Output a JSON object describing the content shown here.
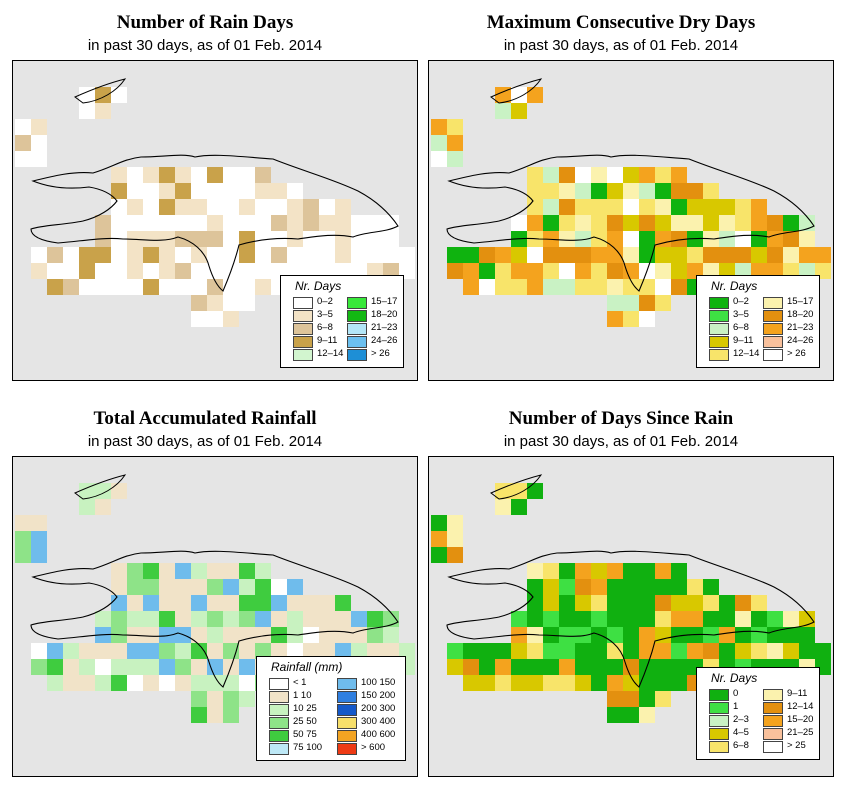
{
  "colors": {
    "map_background": "#e5e5e5",
    "coastline": "#000000"
  },
  "panels": [
    {
      "id": "rain-days",
      "title": "Number of Rain Days",
      "subtitle": "in past 30 days, as of  01 Feb. 2014",
      "legend": {
        "title": "Nr. Days",
        "columns": [
          [
            {
              "label": "0–2",
              "color": "#ffffff"
            },
            {
              "label": "3–5",
              "color": "#f3e3c6"
            },
            {
              "label": "6–8",
              "color": "#ddc49a"
            },
            {
              "label": "9–11",
              "color": "#c9a24a"
            },
            {
              "label": "12–14",
              "color": "#d2f5cf"
            }
          ],
          [
            {
              "label": "15–17",
              "color": "#38e83a"
            },
            {
              "label": "18–20",
              "color": "#13b813"
            },
            {
              "label": "21–23",
              "color": "#b3e6f7"
            },
            {
              "label": "24–26",
              "color": "#6cc0ef"
            },
            {
              "label": "> 26",
              "color": "#1e8fd6"
            }
          ]
        ]
      }
    },
    {
      "id": "dry-days",
      "title": "Maximum Consecutive Dry Days",
      "subtitle": "in past 30 days, as of  01 Feb. 2014",
      "legend": {
        "title": "Nr. Days",
        "columns": [
          [
            {
              "label": "0–2",
              "color": "#0fb30f"
            },
            {
              "label": "3–5",
              "color": "#3ee043"
            },
            {
              "label": "6–8",
              "color": "#c9f2c4"
            },
            {
              "label": "9–11",
              "color": "#d8c800"
            },
            {
              "label": "12–14",
              "color": "#f8e46a"
            }
          ],
          [
            {
              "label": "15–17",
              "color": "#fbf2ae"
            },
            {
              "label": "18–20",
              "color": "#e3900f"
            },
            {
              "label": "21–23",
              "color": "#f4a31e"
            },
            {
              "label": "24–26",
              "color": "#f9c19c"
            },
            {
              "label": "> 26",
              "color": "#ffffff"
            }
          ]
        ]
      }
    },
    {
      "id": "rainfall",
      "title": "Total Accumulated Rainfall",
      "subtitle": "in past 30 days, as of  01 Feb. 2014",
      "legend": {
        "title": "Rainfall (mm)",
        "columns": [
          [
            {
              "label": "< 1",
              "color": "#ffffff"
            },
            {
              "label": "1    10",
              "color": "#f1e3c8"
            },
            {
              "label": "10    25",
              "color": "#c8f2c0"
            },
            {
              "label": "25    50",
              "color": "#8ee388"
            },
            {
              "label": "50    75",
              "color": "#3fcc3f"
            },
            {
              "label": "75   100",
              "color": "#bde8f6"
            }
          ],
          [
            {
              "label": "100   150",
              "color": "#6fbcec"
            },
            {
              "label": "150   200",
              "color": "#2f7fe0"
            },
            {
              "label": "200   300",
              "color": "#1559c9"
            },
            {
              "label": "300   400",
              "color": "#f7df6a"
            },
            {
              "label": "400   600",
              "color": "#f3a422"
            },
            {
              "label": "> 600",
              "color": "#ee3a14"
            }
          ]
        ]
      }
    },
    {
      "id": "since-rain",
      "title": "Number of Days Since Rain",
      "subtitle": "in past 30 days, as of  01 Feb. 2014",
      "legend": {
        "title": "Nr. Days",
        "columns": [
          [
            {
              "label": "0",
              "color": "#10b010"
            },
            {
              "label": "1",
              "color": "#3ee043"
            },
            {
              "label": "2–3",
              "color": "#c9f2c4"
            },
            {
              "label": "4–5",
              "color": "#d8c800"
            },
            {
              "label": "6–8",
              "color": "#f8e46a"
            }
          ],
          [
            {
              "label": "9–11",
              "color": "#fbf2ae"
            },
            {
              "label": "12–14",
              "color": "#e3900f"
            },
            {
              "label": "15–20",
              "color": "#f4a31e"
            },
            {
              "label": "21–25",
              "color": "#f9c19c"
            },
            {
              "label": "> 25",
              "color": "#ffffff"
            }
          ]
        ]
      }
    }
  ]
}
